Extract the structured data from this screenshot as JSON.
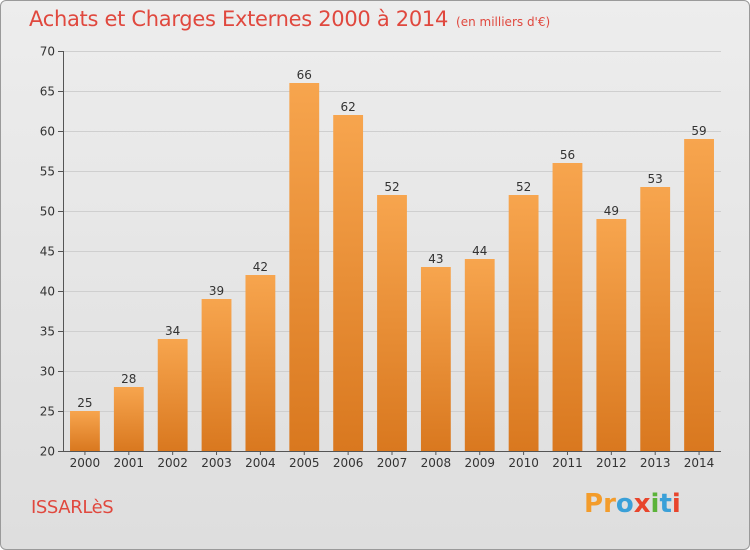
{
  "title": "Achats et Charges Externes 2000 à 2014",
  "subtitle": "(en milliers d'€)",
  "commune": "ISSARLèS",
  "logo": {
    "text": "Proxiti",
    "letters": [
      "P",
      "r",
      "o",
      "x",
      "i",
      "t",
      "i"
    ],
    "colors": [
      "#f39c2b",
      "#f39c2b",
      "#3aa0d8",
      "#e8452c",
      "#5bb33a",
      "#3aa0d8",
      "#e8452c"
    ]
  },
  "colors": {
    "bar_top": "#f7a54e",
    "bar_bottom": "#d9781f",
    "title": "#e0483e",
    "grid": "#cfcfcf"
  },
  "chart_data": {
    "type": "bar",
    "title": "Achats et Charges Externes 2000 à 2014",
    "subtitle": "(en milliers d'€)",
    "categories": [
      "2000",
      "2001",
      "2002",
      "2003",
      "2004",
      "2005",
      "2006",
      "2007",
      "2008",
      "2009",
      "2010",
      "2011",
      "2012",
      "2013",
      "2014"
    ],
    "values": [
      25,
      28,
      34,
      39,
      42,
      66,
      62,
      52,
      43,
      44,
      52,
      56,
      49,
      53,
      59
    ],
    "ylim": [
      20,
      70
    ],
    "yticks": [
      20,
      25,
      30,
      35,
      40,
      45,
      50,
      55,
      60,
      65,
      70
    ],
    "grid": true,
    "data_labels": true
  }
}
